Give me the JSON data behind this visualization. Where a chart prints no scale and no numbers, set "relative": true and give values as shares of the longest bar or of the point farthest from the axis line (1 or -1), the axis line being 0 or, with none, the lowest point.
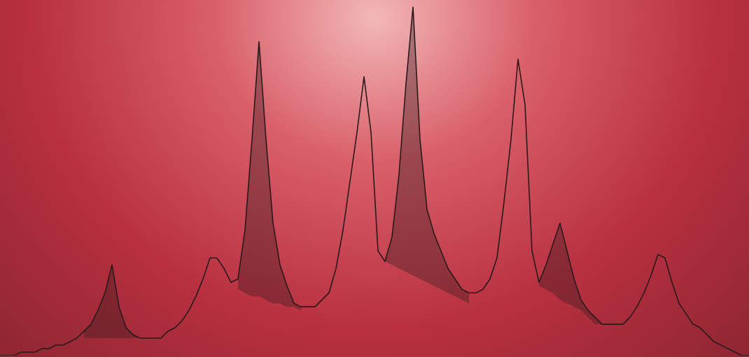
{
  "chart_data": {
    "type": "line",
    "relative": true,
    "grid": false,
    "legend": false,
    "marker": "none",
    "categories": [
      null,
      null,
      null,
      null,
      null,
      null,
      null,
      null,
      null,
      null,
      null,
      null,
      null,
      null,
      null,
      null,
      null,
      null,
      null,
      null,
      null,
      null,
      null,
      null,
      null,
      null,
      null,
      null,
      null,
      null,
      null,
      null,
      null,
      null,
      null,
      null,
      null,
      null,
      null,
      null,
      null,
      null,
      null,
      null,
      null,
      null,
      null,
      null,
      null,
      null,
      null,
      null,
      null,
      null,
      null,
      null,
      null,
      null,
      null,
      null,
      null,
      null,
      null,
      null,
      null,
      null,
      null,
      null,
      null,
      null,
      null,
      null,
      null,
      null,
      null,
      null,
      null,
      null,
      null,
      null,
      null,
      null,
      null,
      null,
      null,
      null,
      null,
      null,
      null,
      null,
      null,
      null,
      null,
      null,
      null,
      null,
      null,
      null,
      null,
      null,
      null,
      null,
      null,
      null,
      null,
      null,
      null,
      null
    ],
    "series": [
      {
        "color": "#2a1a1c",
        "values": [
          0,
          0,
          0,
          0.01,
          0.01,
          0.01,
          0.02,
          0.02,
          0.03,
          0.03,
          0.04,
          0.05,
          0.07,
          0.09,
          0.13,
          0.18,
          0.26,
          0.14,
          0.08,
          0.06,
          0.05,
          0.05,
          0.05,
          0.05,
          0.07,
          0.08,
          0.1,
          0.13,
          0.17,
          0.22,
          0.28,
          0.28,
          0.25,
          0.21,
          0.22,
          0.36,
          0.62,
          0.9,
          0.62,
          0.38,
          0.26,
          0.2,
          0.15,
          0.14,
          0.14,
          0.14,
          0.16,
          0.18,
          0.25,
          0.36,
          0.5,
          0.64,
          0.8,
          0.64,
          0.3,
          0.27,
          0.34,
          0.52,
          0.78,
          1,
          0.62,
          0.42,
          0.35,
          0.3,
          0.25,
          0.22,
          0.19,
          0.18,
          0.18,
          0.19,
          0.22,
          0.28,
          0.44,
          0.62,
          0.85,
          0.72,
          0.3,
          0.21,
          0.26,
          0.32,
          0.38,
          0.3,
          0.22,
          0.16,
          0.13,
          0.11,
          0.09,
          0.09,
          0.09,
          0.09,
          0.11,
          0.14,
          0.18,
          0.23,
          0.29,
          0.28,
          0.21,
          0.15,
          0.12,
          0.09,
          0.08,
          0.06,
          0.04,
          0.03,
          0.02,
          0.01,
          0,
          0
        ],
        "upper": [
          null,
          null,
          null,
          null,
          null,
          null,
          null,
          null,
          null,
          null,
          null,
          null,
          0.07,
          0.09,
          0.13,
          0.18,
          0.26,
          0.14,
          0.08,
          0.06,
          0.05,
          null,
          null,
          null,
          null,
          null,
          null,
          null,
          null,
          null,
          null,
          null,
          null,
          null,
          0.22,
          0.36,
          0.62,
          0.9,
          0.62,
          0.38,
          0.26,
          0.2,
          0.15,
          0.14,
          null,
          null,
          null,
          null,
          null,
          null,
          null,
          null,
          null,
          null,
          null,
          0.27,
          0.34,
          0.52,
          0.78,
          1,
          0.62,
          0.42,
          0.35,
          0.3,
          0.25,
          0.22,
          0.19,
          0.18,
          null,
          null,
          null,
          null,
          null,
          null,
          null,
          null,
          null,
          0.21,
          0.26,
          0.32,
          0.38,
          0.3,
          0.22,
          0.16,
          0.13,
          0.11,
          0.09,
          null,
          null,
          null,
          null,
          null,
          null,
          null,
          null,
          null,
          null,
          null,
          null,
          null,
          null,
          null,
          null,
          null,
          null,
          null,
          null,
          null
        ],
        "lower": [
          null,
          null,
          null,
          null,
          null,
          null,
          null,
          null,
          null,
          null,
          null,
          null,
          0.05,
          0.05,
          0.05,
          0.05,
          0.05,
          0.05,
          0.05,
          0.05,
          0.05,
          null,
          null,
          null,
          null,
          null,
          null,
          null,
          null,
          null,
          null,
          null,
          null,
          null,
          0.19,
          0.18,
          0.17,
          0.17,
          0.16,
          0.15,
          0.15,
          0.14,
          0.14,
          0.13,
          null,
          null,
          null,
          null,
          null,
          null,
          null,
          null,
          null,
          null,
          null,
          0.27,
          0.26,
          0.25,
          0.24,
          0.23,
          0.22,
          0.21,
          0.2,
          0.19,
          0.18,
          0.17,
          0.16,
          0.15,
          null,
          null,
          null,
          null,
          null,
          null,
          null,
          null,
          null,
          0.2,
          0.19,
          0.18,
          0.16,
          0.15,
          0.14,
          0.13,
          0.11,
          0.09,
          0.09,
          null,
          null,
          null,
          null,
          null,
          null,
          null,
          null,
          null,
          null,
          null,
          null,
          null,
          null,
          null,
          null,
          null,
          null,
          null,
          null,
          null
        ]
      }
    ]
  }
}
